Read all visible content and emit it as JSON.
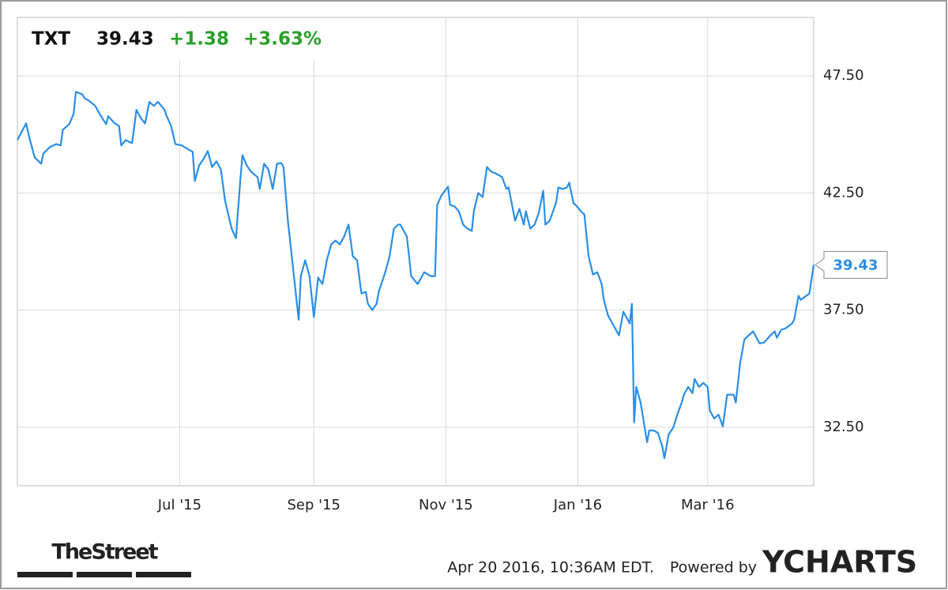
{
  "chart_data": {
    "type": "line",
    "symbol": "TXT",
    "price": 39.43,
    "change": "+1.38",
    "change_pct": "+3.63%",
    "color": "#2a8ee6",
    "gain_color": "#2aa02a",
    "grid": true,
    "x": [
      0,
      4,
      6,
      8,
      11,
      12,
      15,
      18,
      20,
      21,
      24,
      26,
      27,
      30,
      31,
      33,
      36,
      38,
      41,
      42,
      45,
      47,
      48,
      50,
      53,
      55,
      57,
      59,
      61,
      63,
      65,
      68,
      69,
      71,
      73,
      76,
      79,
      81,
      82,
      84,
      86,
      88,
      90,
      92,
      94,
      96,
      99,
      101,
      103,
      104,
      106,
      108,
      111,
      112,
      114,
      116,
      118,
      120,
      122,
      123,
      125,
      127,
      128,
      130,
      131,
      133,
      135,
      137,
      139,
      141,
      143,
      145,
      147,
      149,
      151,
      153,
      155,
      157,
      159,
      161,
      162,
      164,
      166,
      167,
      170,
      172,
      174,
      176,
      177,
      180,
      181,
      182,
      185,
      186,
      188,
      191,
      193,
      194,
      196,
      199,
      200,
      202,
      204,
      206,
      208,
      210,
      211,
      213,
      215,
      217,
      219,
      221,
      224,
      226,
      227,
      230,
      232,
      234,
      235,
      237,
      239,
      241,
      243,
      244,
      246,
      249,
      250,
      252,
      254,
      255,
      257,
      258,
      261,
      262,
      264,
      266,
      268,
      270,
      271,
      273,
      275,
      277,
      278,
      280,
      283,
      284,
      285,
      286,
      288,
      291,
      292,
      294,
      296,
      298,
      299,
      301,
      303,
      305,
      307,
      308,
      310,
      312,
      313,
      315,
      317,
      319,
      320,
      322,
      324,
      326,
      327,
      328,
      331,
      332,
      334,
      336,
      338,
      340,
      342,
      343,
      345,
      348,
      350,
      351,
      353,
      355,
      358,
      359,
      361,
      362,
      364,
      366,
      368
    ],
    "values": [
      44.76,
      45.47,
      44.7,
      44.02,
      43.75,
      44.19,
      44.46,
      44.59,
      44.53,
      45.2,
      45.44,
      45.88,
      46.82,
      46.72,
      46.55,
      46.45,
      46.22,
      45.88,
      45.44,
      45.78,
      45.47,
      45.37,
      44.53,
      44.76,
      44.63,
      46.05,
      45.71,
      45.47,
      46.39,
      46.22,
      46.39,
      46.05,
      45.78,
      45.37,
      44.59,
      44.53,
      44.36,
      44.26,
      43.01,
      43.68,
      43.95,
      44.29,
      43.61,
      43.85,
      43.51,
      42.16,
      40.98,
      40.57,
      43.01,
      44.12,
      43.68,
      43.41,
      43.18,
      42.67,
      43.75,
      43.51,
      42.67,
      43.75,
      43.78,
      43.61,
      41.32,
      39.63,
      38.78,
      37.09,
      38.95,
      39.63,
      38.95,
      37.2,
      38.89,
      38.61,
      39.63,
      40.3,
      40.47,
      40.3,
      40.64,
      41.15,
      39.8,
      39.63,
      38.21,
      38.28,
      37.77,
      37.5,
      37.77,
      38.28,
      39.12,
      39.8,
      40.98,
      41.15,
      41.15,
      40.64,
      39.8,
      38.95,
      38.61,
      38.78,
      39.12,
      38.95,
      38.95,
      41.99,
      42.4,
      42.77,
      41.99,
      41.93,
      41.72,
      41.15,
      40.98,
      40.88,
      41.76,
      42.5,
      42.33,
      43.61,
      43.41,
      43.34,
      43.18,
      42.67,
      42.74,
      41.32,
      41.82,
      41.15,
      41.72,
      40.98,
      41.15,
      41.66,
      42.6,
      41.15,
      41.32,
      42.09,
      42.74,
      42.67,
      42.74,
      42.94,
      42.06,
      41.99,
      41.66,
      41.59,
      39.8,
      39.02,
      39.12,
      38.61,
      37.94,
      37.26,
      36.93,
      36.59,
      36.42,
      37.43,
      36.93,
      37.77,
      32.7,
      34.22,
      33.55,
      31.86,
      32.36,
      32.36,
      32.26,
      31.69,
      31.18,
      32.2,
      32.47,
      33.04,
      33.55,
      33.89,
      34.22,
      33.95,
      34.56,
      34.22,
      34.39,
      34.22,
      33.21,
      32.87,
      33.04,
      32.53,
      33.21,
      33.89,
      33.89,
      33.55,
      35.24,
      36.25,
      36.42,
      36.59,
      36.25,
      36.08,
      36.11,
      36.42,
      36.59,
      36.32,
      36.66,
      36.72,
      36.93,
      37.09,
      38.11,
      37.94,
      38.07,
      38.21,
      39.43
    ],
    "xlim": [
      0,
      368
    ],
    "xticks": [
      {
        "value": 75,
        "label": "Jul '15"
      },
      {
        "value": 137,
        "label": "Sep '15"
      },
      {
        "value": 198,
        "label": "Nov '15"
      },
      {
        "value": 259,
        "label": "Jan '16"
      },
      {
        "value": 319,
        "label": "Mar '16"
      }
    ],
    "ylim": [
      30,
      50
    ],
    "yticks": [
      {
        "value": 32.5,
        "label": "32.50"
      },
      {
        "value": 37.5,
        "label": "37.50"
      },
      {
        "value": 42.5,
        "label": "42.50"
      },
      {
        "value": 47.5,
        "label": "47.50"
      }
    ]
  },
  "footer": {
    "source": "TheStreet",
    "timestamp": "Apr 20 2016, 10:36AM EDT.",
    "powered_by": "Powered by",
    "brand": "YCHARTS"
  }
}
